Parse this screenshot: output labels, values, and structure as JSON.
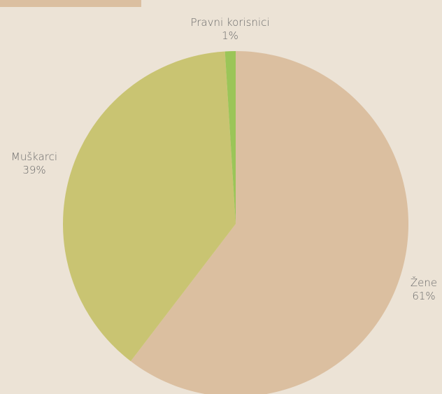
{
  "chart_data": {
    "type": "pie",
    "slices": [
      {
        "label": "Žene",
        "value": 61,
        "value_label": "61%",
        "color": "#dbbfa0"
      },
      {
        "label": "Muškarci",
        "value": 39,
        "value_label": "39%",
        "color": "#c9c472"
      },
      {
        "label": "Pravni korisnici",
        "value": 1,
        "value_label": "1%",
        "color": "#9bc558"
      }
    ],
    "start": "12 o'clock",
    "direction": "clockwise",
    "legend": "none"
  },
  "colors": {
    "background": "#ece3d6",
    "label_text": "#6a6a6a",
    "top_strip": "#dbbfa0"
  }
}
